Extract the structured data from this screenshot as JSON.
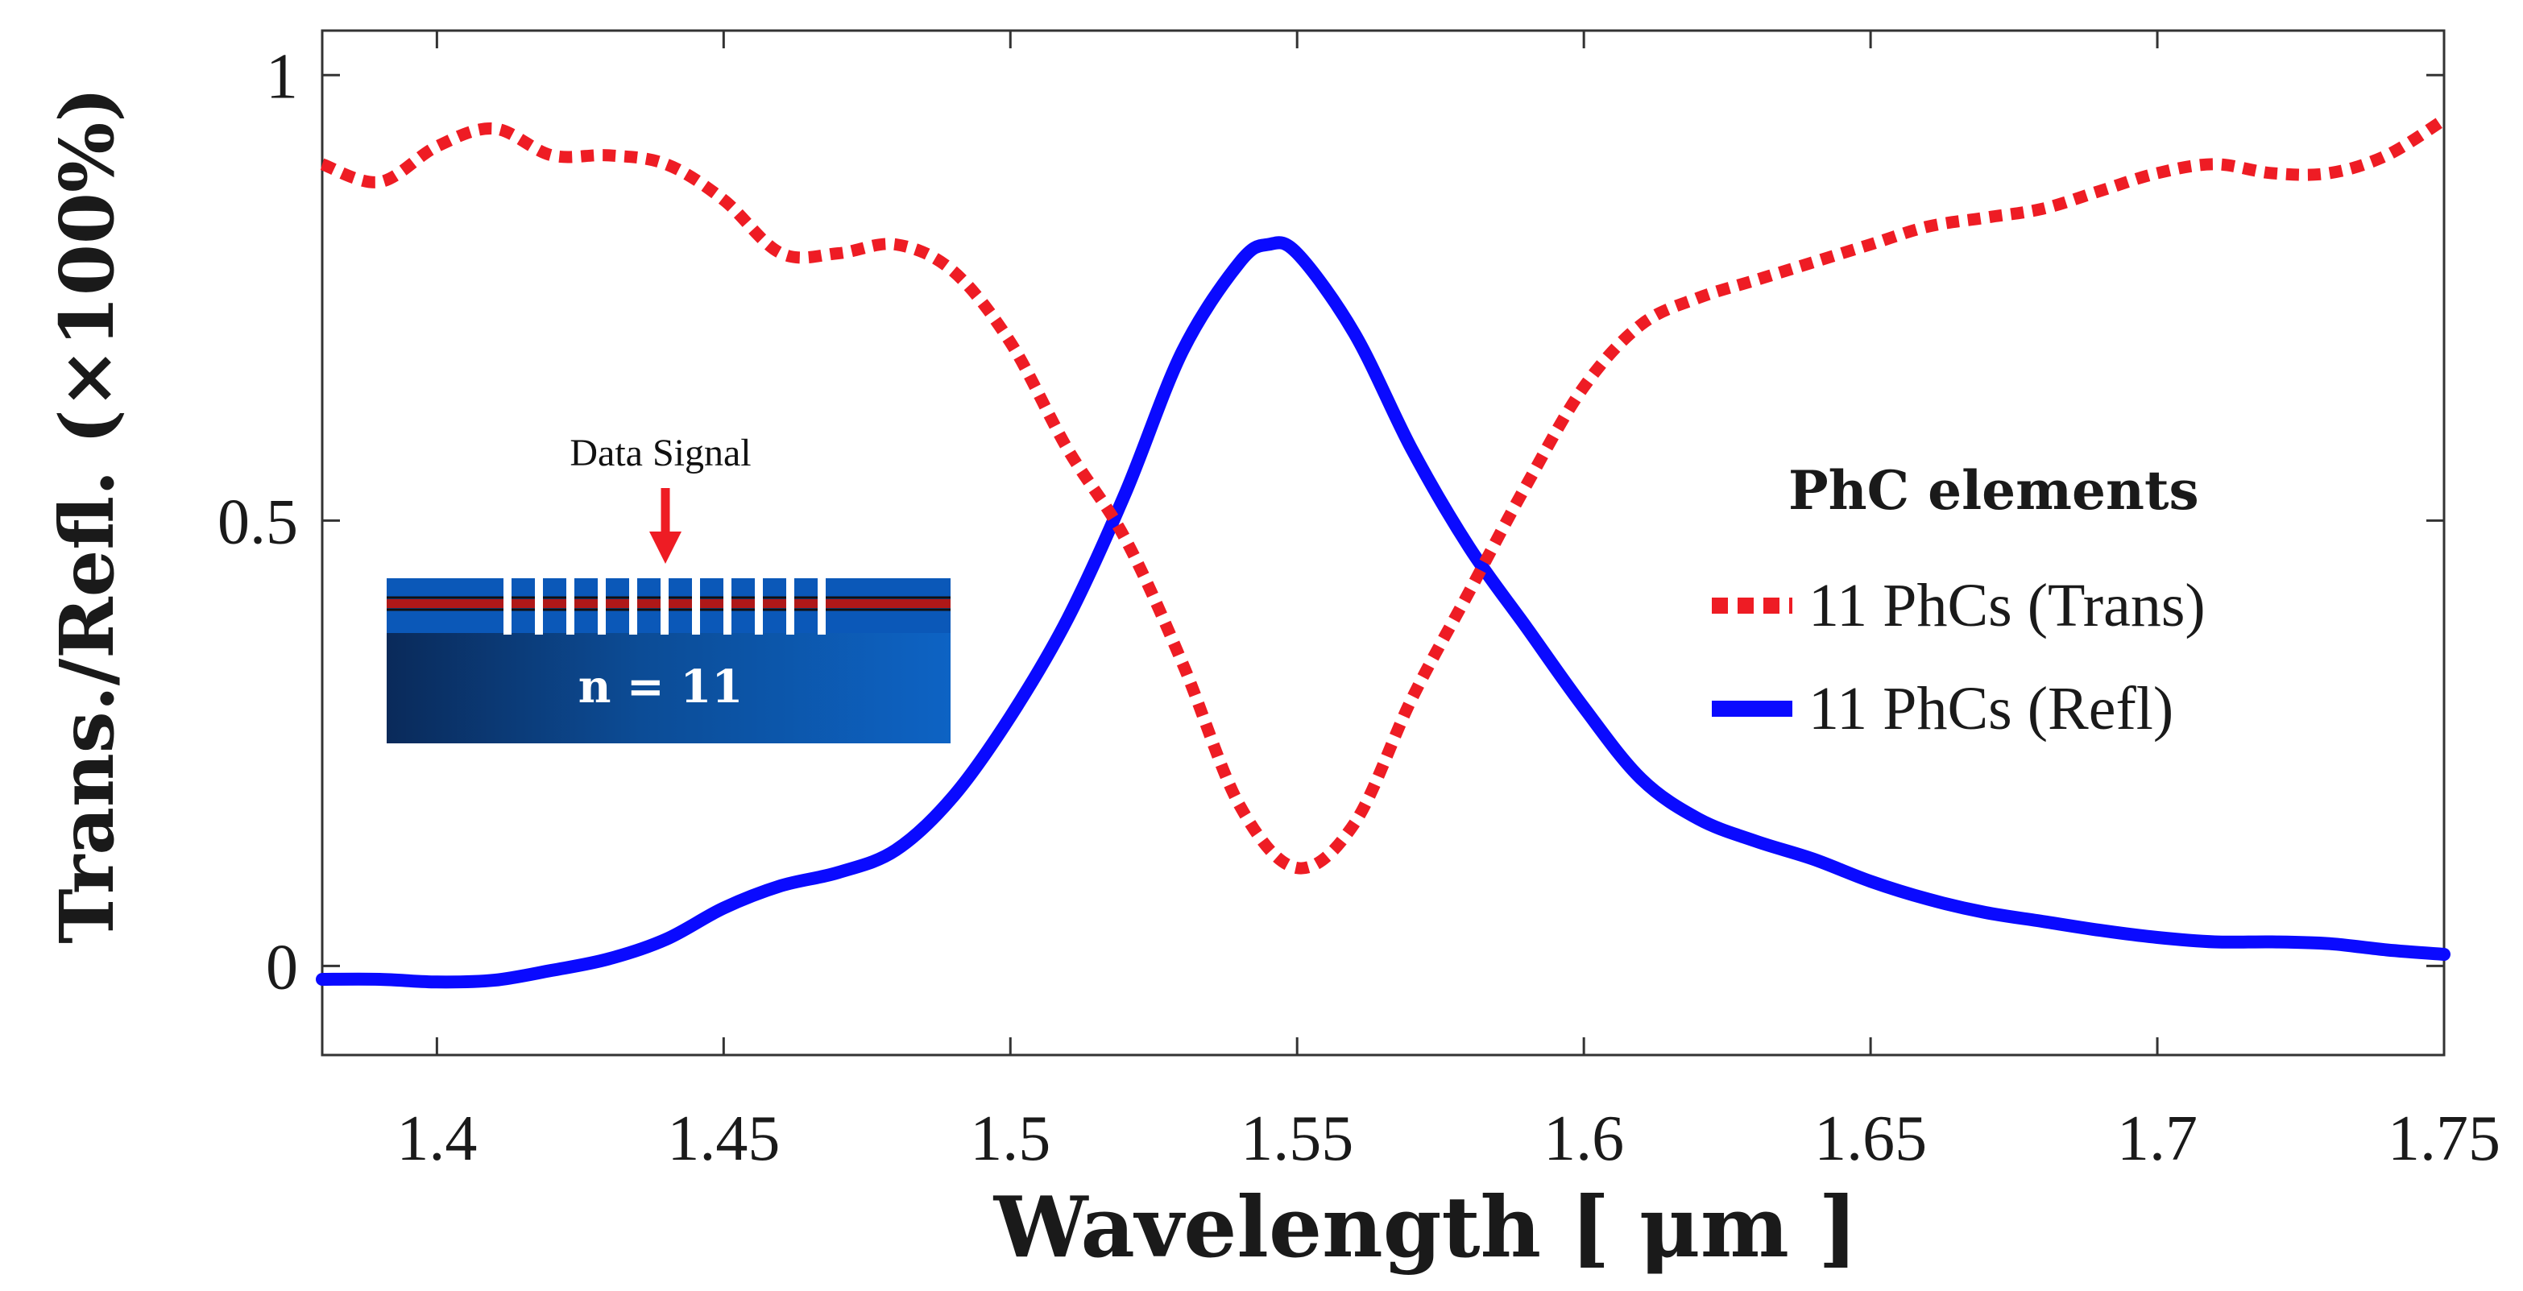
{
  "chart_data": {
    "type": "line",
    "title": "",
    "xlabel": "Wavelength [ μm ]",
    "ylabel": "Trans./Refl. (×100%)",
    "xlim": [
      1.38,
      1.75
    ],
    "ylim": [
      -0.1,
      1.05
    ],
    "x_ticks": [
      1.4,
      1.45,
      1.5,
      1.55,
      1.6,
      1.65,
      1.7,
      1.75
    ],
    "x_tick_labels": [
      "1.4",
      "1.45",
      "1.5",
      "1.55",
      "1.6",
      "1.65",
      "1.7",
      "1.75"
    ],
    "y_ticks": [
      0,
      0.5,
      1
    ],
    "y_tick_labels": [
      "0",
      "0.5",
      "1"
    ],
    "grid": false,
    "legend": {
      "title": "PhC elements",
      "placement": "right"
    },
    "series": [
      {
        "name": "11 PhCs (Trans)",
        "color": "#ee1c24",
        "style": "dotted",
        "x": [
          1.38,
          1.39,
          1.4,
          1.41,
          1.42,
          1.43,
          1.44,
          1.45,
          1.46,
          1.47,
          1.48,
          1.49,
          1.5,
          1.51,
          1.52,
          1.53,
          1.54,
          1.55,
          1.56,
          1.57,
          1.58,
          1.59,
          1.6,
          1.61,
          1.62,
          1.63,
          1.64,
          1.65,
          1.66,
          1.67,
          1.68,
          1.69,
          1.7,
          1.71,
          1.72,
          1.73,
          1.74,
          1.75
        ],
        "y": [
          0.9,
          0.88,
          0.92,
          0.94,
          0.91,
          0.91,
          0.9,
          0.86,
          0.8,
          0.8,
          0.81,
          0.78,
          0.7,
          0.58,
          0.48,
          0.34,
          0.18,
          0.11,
          0.16,
          0.3,
          0.42,
          0.54,
          0.65,
          0.72,
          0.75,
          0.77,
          0.79,
          0.81,
          0.83,
          0.84,
          0.85,
          0.87,
          0.89,
          0.9,
          0.89,
          0.89,
          0.91,
          0.95
        ]
      },
      {
        "name": "11 PhCs (Refl)",
        "color": "#0a0aff",
        "style": "solid",
        "x": [
          1.38,
          1.39,
          1.4,
          1.41,
          1.42,
          1.43,
          1.44,
          1.45,
          1.46,
          1.47,
          1.48,
          1.49,
          1.5,
          1.51,
          1.52,
          1.53,
          1.54,
          1.545,
          1.55,
          1.56,
          1.57,
          1.58,
          1.59,
          1.6,
          1.61,
          1.62,
          1.63,
          1.64,
          1.65,
          1.66,
          1.67,
          1.68,
          1.69,
          1.7,
          1.71,
          1.72,
          1.73,
          1.74,
          1.75
        ],
        "y": [
          -0.015,
          -0.015,
          -0.018,
          -0.016,
          -0.005,
          0.008,
          0.03,
          0.065,
          0.09,
          0.105,
          0.13,
          0.19,
          0.28,
          0.39,
          0.53,
          0.69,
          0.79,
          0.81,
          0.8,
          0.71,
          0.58,
          0.47,
          0.38,
          0.29,
          0.21,
          0.165,
          0.14,
          0.12,
          0.095,
          0.075,
          0.06,
          0.05,
          0.04,
          0.032,
          0.027,
          0.027,
          0.025,
          0.018,
          0.013
        ]
      }
    ],
    "inset": {
      "label": "Data Signal",
      "text": "n = 11",
      "slot_count": 11
    }
  }
}
